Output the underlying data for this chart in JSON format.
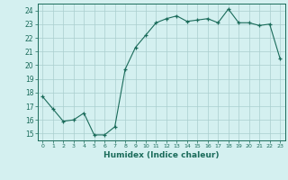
{
  "x": [
    0,
    1,
    2,
    3,
    4,
    5,
    6,
    7,
    8,
    9,
    10,
    11,
    12,
    13,
    14,
    15,
    16,
    17,
    18,
    19,
    20,
    21,
    22,
    23
  ],
  "y": [
    17.7,
    16.8,
    15.9,
    16.0,
    16.5,
    14.9,
    14.9,
    15.5,
    19.7,
    21.3,
    22.2,
    23.1,
    23.4,
    23.6,
    23.2,
    23.3,
    23.4,
    23.1,
    24.1,
    23.1,
    23.1,
    22.9,
    23.0,
    20.5
  ],
  "xlabel": "Humidex (Indice chaleur)",
  "xlim": [
    -0.5,
    23.5
  ],
  "ylim": [
    14.5,
    24.5
  ],
  "yticks": [
    15,
    16,
    17,
    18,
    19,
    20,
    21,
    22,
    23,
    24
  ],
  "xticks": [
    0,
    1,
    2,
    3,
    4,
    5,
    6,
    7,
    8,
    9,
    10,
    11,
    12,
    13,
    14,
    15,
    16,
    17,
    18,
    19,
    20,
    21,
    22,
    23
  ],
  "line_color": "#1a6b5a",
  "marker_color": "#1a6b5a",
  "bg_color": "#d4f0f0",
  "grid_color": "#aacece"
}
